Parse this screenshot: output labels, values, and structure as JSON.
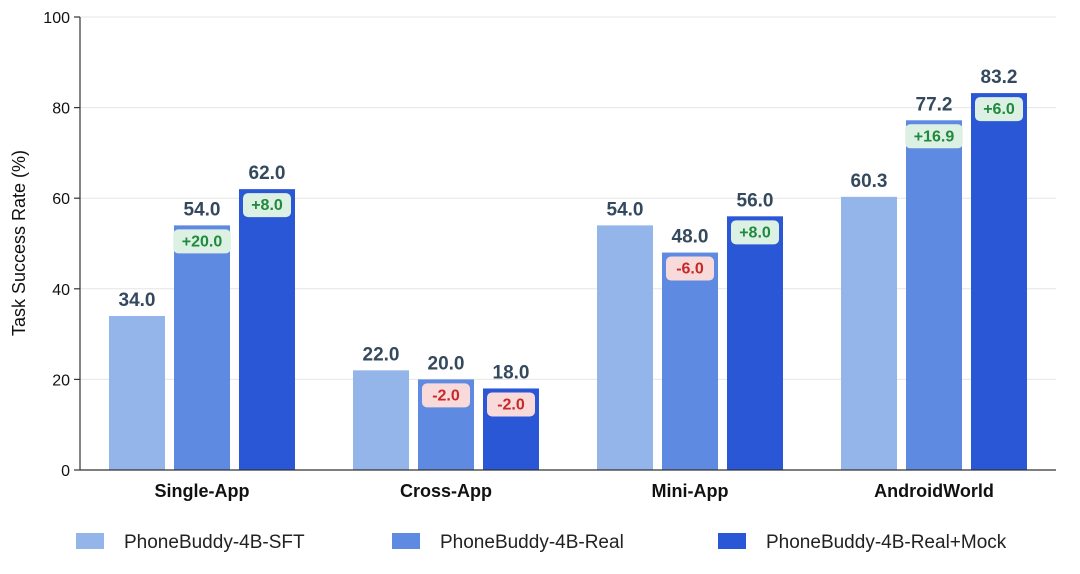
{
  "chart_data": {
    "type": "bar",
    "title": "",
    "xlabel": "",
    "ylabel": "Task Success Rate (%)",
    "ylim": [
      0,
      100
    ],
    "yticks": [
      0,
      20,
      40,
      60,
      80,
      100
    ],
    "grid": true,
    "legend_position": "bottom",
    "categories": [
      "Single-App",
      "Cross-App",
      "Mini-App",
      "AndroidWorld"
    ],
    "series": [
      {
        "name": "PhoneBuddy-4B-SFT",
        "color": "#93b5ea",
        "values": [
          34.0,
          22.0,
          54.0,
          60.3
        ],
        "labels": [
          "34.0",
          "22.0",
          "54.0",
          "60.3"
        ],
        "deltas": [
          null,
          null,
          null,
          null
        ]
      },
      {
        "name": "PhoneBuddy-4B-Real",
        "color": "#5f8ae2",
        "values": [
          54.0,
          20.0,
          48.0,
          77.2
        ],
        "labels": [
          "54.0",
          "20.0",
          "48.0",
          "77.2"
        ],
        "deltas": [
          "+20.0",
          "-2.0",
          "-6.0",
          "+16.9"
        ]
      },
      {
        "name": "PhoneBuddy-4B-Real+Mock",
        "color": "#2a57d6",
        "values": [
          62.0,
          18.0,
          56.0,
          83.2
        ],
        "labels": [
          "62.0",
          "18.0",
          "56.0",
          "83.2"
        ],
        "deltas": [
          "+8.0",
          "-2.0",
          "+8.0",
          "+6.0"
        ]
      }
    ],
    "delta_colors": {
      "positive_bg": "#dcf1e3",
      "positive_text": "#1e8a3c",
      "negative_bg": "#f9dada",
      "negative_text": "#c62828"
    }
  }
}
